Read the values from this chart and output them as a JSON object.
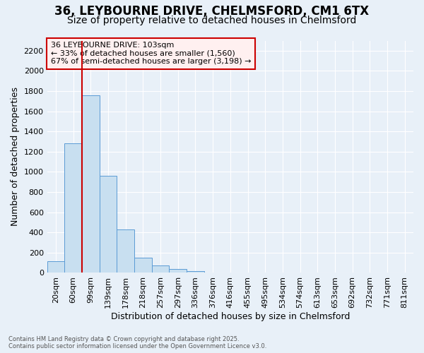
{
  "title_line1": "36, LEYBOURNE DRIVE, CHELMSFORD, CM1 6TX",
  "title_line2": "Size of property relative to detached houses in Chelmsford",
  "xlabel": "Distribution of detached houses by size in Chelmsford",
  "ylabel": "Number of detached properties",
  "bar_labels": [
    "20sqm",
    "60sqm",
    "99sqm",
    "139sqm",
    "178sqm",
    "218sqm",
    "257sqm",
    "297sqm",
    "336sqm",
    "376sqm",
    "416sqm",
    "455sqm",
    "495sqm",
    "534sqm",
    "574sqm",
    "613sqm",
    "653sqm",
    "692sqm",
    "732sqm",
    "771sqm",
    "811sqm"
  ],
  "bar_values": [
    115,
    1280,
    1760,
    960,
    430,
    150,
    75,
    35,
    20,
    0,
    0,
    0,
    0,
    0,
    0,
    0,
    0,
    0,
    0,
    0,
    0
  ],
  "bar_color": "#c8dff0",
  "bar_edge_color": "#5b9bd5",
  "ylim": [
    0,
    2300
  ],
  "yticks": [
    0,
    200,
    400,
    600,
    800,
    1000,
    1200,
    1400,
    1600,
    1800,
    2000,
    2200
  ],
  "vline_x": 1.5,
  "vline_color": "#cc0000",
  "annotation_text": "36 LEYBOURNE DRIVE: 103sqm\n← 33% of detached houses are smaller (1,560)\n67% of semi-detached houses are larger (3,198) →",
  "annotation_facecolor": "#fff0f0",
  "annotation_edgecolor": "#cc0000",
  "bg_color": "#e8f0f8",
  "grid_color": "#ffffff",
  "footnote": "Contains HM Land Registry data © Crown copyright and database right 2025.\nContains public sector information licensed under the Open Government Licence v3.0.",
  "title_fontsize": 12,
  "subtitle_fontsize": 10,
  "axis_label_fontsize": 9,
  "tick_fontsize": 8,
  "annotation_fontsize": 8
}
